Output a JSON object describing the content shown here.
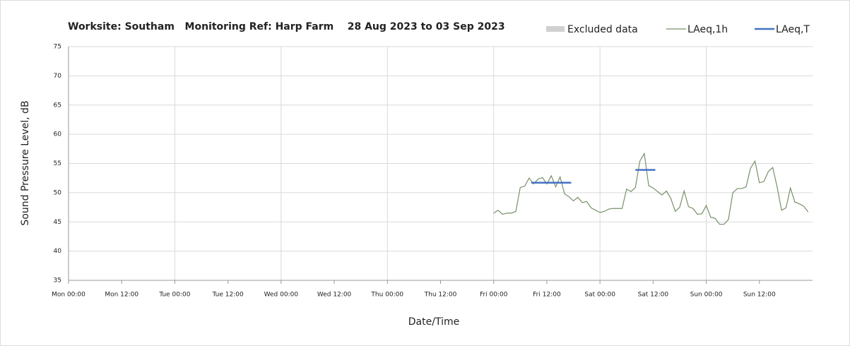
{
  "chart_data": {
    "type": "line",
    "title": "Worksite: Southam   Monitoring Ref: Harp Farm    28 Aug 2023 to 03 Sep 2023",
    "x_label": "Date/Time",
    "y_label": "Sound Pressure Level, dB",
    "xlim": [
      0,
      168
    ],
    "xticks": [
      {
        "value": 0,
        "label": "Mon 00:00"
      },
      {
        "value": 12,
        "label": "Mon 12:00"
      },
      {
        "value": 24,
        "label": "Tue 00:00"
      },
      {
        "value": 36,
        "label": "Tue 12:00"
      },
      {
        "value": 48,
        "label": "Wed 00:00"
      },
      {
        "value": 60,
        "label": "Wed 12:00"
      },
      {
        "value": 72,
        "label": "Thu 00:00"
      },
      {
        "value": 84,
        "label": "Thu 12:00"
      },
      {
        "value": 96,
        "label": "Fri 00:00"
      },
      {
        "value": 108,
        "label": "Fri 12:00"
      },
      {
        "value": 120,
        "label": "Sat 00:00"
      },
      {
        "value": 132,
        "label": "Sat 12:00"
      },
      {
        "value": 144,
        "label": "Sun 00:00"
      },
      {
        "value": 156,
        "label": "Sun 12:00"
      }
    ],
    "ylim": [
      35,
      75
    ],
    "yticks": [
      35,
      40,
      45,
      50,
      55,
      60,
      65,
      70,
      75
    ],
    "grid": true,
    "series": [
      {
        "name": "Excluded data",
        "color": "#d0d0d0",
        "x": [],
        "values": []
      },
      {
        "name": "LAeq,1h",
        "color": "#76906a",
        "x": [
          96,
          97,
          98,
          99,
          100,
          101,
          102,
          103,
          104,
          105,
          106,
          107,
          108,
          109,
          110,
          111,
          112,
          113,
          114,
          115,
          116,
          117,
          118,
          119,
          120,
          121,
          122,
          123,
          124,
          125,
          126,
          127,
          128,
          129,
          130,
          131,
          132,
          133,
          134,
          135,
          136,
          137,
          138,
          139,
          140,
          141,
          142,
          143,
          144,
          145,
          146,
          147,
          148,
          149,
          150,
          151,
          152,
          153,
          154,
          155,
          156,
          157,
          158,
          159,
          160,
          161,
          162,
          163,
          164,
          165,
          166,
          167
        ],
        "values": [
          46.5,
          47,
          46.3,
          46.5,
          46.5,
          46.8,
          50.9,
          51.1,
          52.5,
          51.5,
          52.3,
          52.6,
          51.5,
          52.9,
          51,
          52.7,
          49.8,
          49.3,
          48.6,
          49.2,
          48.3,
          48.5,
          47.4,
          47,
          46.6,
          46.8,
          47.2,
          47.3,
          47.3,
          47.3,
          50.6,
          50.2,
          50.9,
          55.4,
          56.7,
          51.2,
          50.8,
          50.2,
          49.6,
          50.3,
          49,
          46.8,
          47.5,
          50.3,
          47.6,
          47.3,
          46.3,
          46.4,
          47.8,
          45.8,
          45.6,
          44.6,
          44.6,
          45.4,
          50,
          50.7,
          50.7,
          51,
          54.2,
          55.4,
          51.7,
          51.9,
          53.6,
          54.3,
          51,
          47,
          47.4,
          50.8,
          48.4,
          48.1,
          47.7,
          46.7
        ]
      },
      {
        "name": "LAeq,T",
        "color": "#4472c4",
        "x": [
          104.5,
          113.5,
          121,
          128,
          132.5
        ],
        "values": [
          51.7,
          51.7,
          null,
          53.9,
          53.9
        ]
      }
    ]
  }
}
